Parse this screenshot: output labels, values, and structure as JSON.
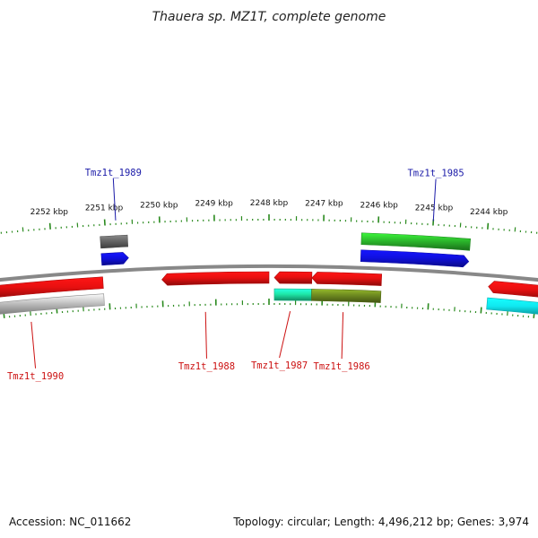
{
  "title": "Thauera sp. MZ1T, complete genome",
  "footer": {
    "accession": "Accession: NC_011662",
    "summary": "Topology: circular; Length: 4,496,212 bp; Genes: 3,974"
  },
  "ticks": [
    {
      "label": "2252 kbp",
      "kbp": 2252
    },
    {
      "label": "2251 kbp",
      "kbp": 2251
    },
    {
      "label": "2250 kbp",
      "kbp": 2250
    },
    {
      "label": "2249 kbp",
      "kbp": 2249
    },
    {
      "label": "2248 kbp",
      "kbp": 2248
    },
    {
      "label": "2247 kbp",
      "kbp": 2247
    },
    {
      "label": "2246 kbp",
      "kbp": 2246
    },
    {
      "label": "2245 kbp",
      "kbp": 2245
    },
    {
      "label": "2244 kbp",
      "kbp": 2244
    }
  ],
  "colors": {
    "backbone": "#888888",
    "tick": "#2a8a1e",
    "label_top": "#1a1aa8",
    "label_bottom": "#cc1111",
    "red": "#e81010",
    "blue": "#1010e0",
    "green": "#2cb82c",
    "gray": "#666666",
    "lightgray": "#bbbbbb",
    "aqua": "#1ee8a8",
    "olive": "#6e8a20",
    "cyan": "#10e8f0"
  },
  "features": [
    {
      "kbp_start": 2251.1,
      "kbp_end": 2250.6,
      "track": "top-outer",
      "color": "gray",
      "shape": "box"
    },
    {
      "kbp_start": 2251.1,
      "kbp_end": 2250.6,
      "track": "top-inner",
      "color": "blue",
      "shape": "arrow-left"
    },
    {
      "kbp_start": 2246.3,
      "kbp_end": 2244.3,
      "track": "top-outer",
      "color": "green",
      "shape": "box"
    },
    {
      "kbp_start": 2246.3,
      "kbp_end": 2244.3,
      "track": "top-inner",
      "color": "blue",
      "shape": "arrow-left"
    },
    {
      "kbp_start": 2253.5,
      "kbp_end": 2251.1,
      "track": "bottom-inner",
      "color": "red",
      "shape": "box"
    },
    {
      "kbp_start": 2253.5,
      "kbp_end": 2251.1,
      "track": "bottom-outer",
      "color": "lightgray",
      "shape": "box"
    },
    {
      "kbp_start": 2250.0,
      "kbp_end": 2248.0,
      "track": "bottom-inner",
      "color": "red",
      "shape": "arrow-right"
    },
    {
      "kbp_start": 2247.9,
      "kbp_end": 2247.2,
      "track": "bottom-inner",
      "color": "red",
      "shape": "arrow-right"
    },
    {
      "kbp_start": 2247.9,
      "kbp_end": 2247.2,
      "track": "bottom-outer",
      "color": "aqua",
      "shape": "box"
    },
    {
      "kbp_start": 2247.2,
      "kbp_end": 2245.9,
      "track": "bottom-inner",
      "color": "red",
      "shape": "arrow-right"
    },
    {
      "kbp_start": 2247.2,
      "kbp_end": 2245.9,
      "track": "bottom-outer",
      "color": "olive",
      "shape": "box"
    },
    {
      "kbp_start": 2243.9,
      "kbp_end": 2242.5,
      "track": "bottom-inner",
      "color": "red",
      "shape": "arrow-right"
    },
    {
      "kbp_start": 2243.9,
      "kbp_end": 2242.5,
      "track": "bottom-outer",
      "color": "cyan",
      "shape": "box"
    }
  ],
  "gene_labels": [
    {
      "text": "Tmz1t_1989",
      "kbp": 2250.8,
      "side": "top",
      "label_kbp": 2250.8
    },
    {
      "text": "Tmz1t_1985",
      "kbp": 2245.0,
      "side": "top",
      "label_kbp": 2245.0
    },
    {
      "text": "Tmz1t_1990",
      "kbp": 2252.5,
      "side": "bottom",
      "label_kbp": 2252.5
    },
    {
      "text": "Tmz1t_1988",
      "kbp": 2249.2,
      "side": "bottom",
      "label_kbp": 2249.2
    },
    {
      "text": "Tmz1t_1987",
      "kbp": 2247.6,
      "side": "bottom",
      "label_kbp": 2247.8
    },
    {
      "text": "Tmz1t_1986",
      "kbp": 2246.6,
      "side": "bottom",
      "label_kbp": 2246.6
    }
  ]
}
